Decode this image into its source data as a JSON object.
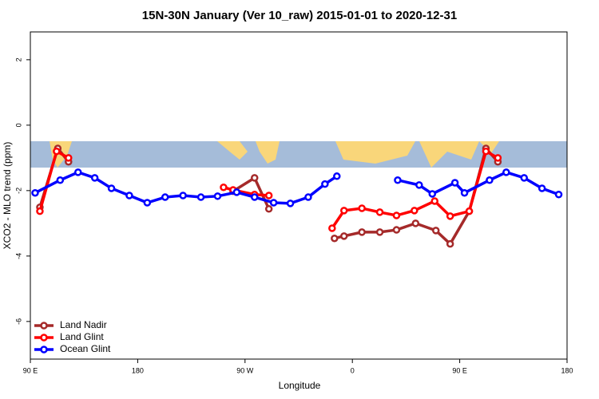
{
  "chart_data": {
    "type": "line",
    "title": "15N-30N January (Ver 10_raw)   2015-01-01 to 2020-12-31",
    "x_label": "Longitude",
    "y_label": "XCO2 - MLO trend (ppm)",
    "xlim": [
      90,
      540
    ],
    "ylim": [
      -7.15,
      2.85
    ],
    "xticks": [
      {
        "value": 90,
        "label": "90 E"
      },
      180,
      {
        "value": 270,
        "label": "90 W"
      },
      {
        "value": 360,
        "label": "0"
      },
      {
        "value": 450,
        "label": "90 E"
      },
      {
        "value": 540,
        "label": "180"
      }
    ],
    "yticks": [
      2,
      0,
      -2,
      -4,
      -6
    ],
    "legend": "bottom-left",
    "grid": false,
    "series": [
      {
        "name": "Land Nadir",
        "color": "#a52a2a",
        "x": [
          98,
          113,
          122,
          null,
          260,
          278,
          290,
          null,
          345,
          353,
          368,
          383,
          397,
          413,
          430,
          442,
          458,
          472,
          482
        ],
        "values": [
          -2.51,
          -0.71,
          -1.12,
          null,
          -2.02,
          -1.61,
          -2.56,
          null,
          -3.46,
          -3.39,
          -3.27,
          -3.27,
          -3.2,
          -3.0,
          -3.22,
          -3.63,
          -2.63,
          -0.71,
          -1.12
        ]
      },
      {
        "name": "Land Glint",
        "color": "#ff0000",
        "x": [
          98,
          112,
          122,
          null,
          252,
          260,
          278,
          290,
          null,
          343,
          353,
          368,
          383,
          397,
          412,
          429,
          442,
          458,
          472,
          482
        ],
        "values": [
          -2.63,
          -0.8,
          -1.0,
          null,
          -1.9,
          -1.98,
          -2.12,
          -2.15,
          null,
          -3.15,
          -2.61,
          -2.54,
          -2.66,
          -2.76,
          -2.61,
          -2.32,
          -2.78,
          -2.63,
          -0.8,
          -1.0
        ]
      },
      {
        "name": "Ocean Glint",
        "color": "#0000ff",
        "x": [
          94,
          115,
          130,
          144,
          158,
          173,
          188,
          203,
          218,
          233,
          247,
          263,
          278,
          294,
          308,
          323,
          337,
          347,
          null,
          398,
          416,
          427,
          446,
          454,
          475,
          489,
          504,
          519,
          533
        ],
        "values": [
          -2.07,
          -1.68,
          -1.44,
          -1.61,
          -1.93,
          -2.15,
          -2.37,
          -2.2,
          -2.15,
          -2.2,
          -2.17,
          -2.05,
          -2.2,
          -2.37,
          -2.39,
          -2.2,
          -1.8,
          -1.56,
          null,
          -1.68,
          -1.83,
          -2.1,
          -1.76,
          -2.07,
          -1.68,
          -1.44,
          -1.61,
          -1.93,
          -2.12
        ]
      }
    ]
  }
}
